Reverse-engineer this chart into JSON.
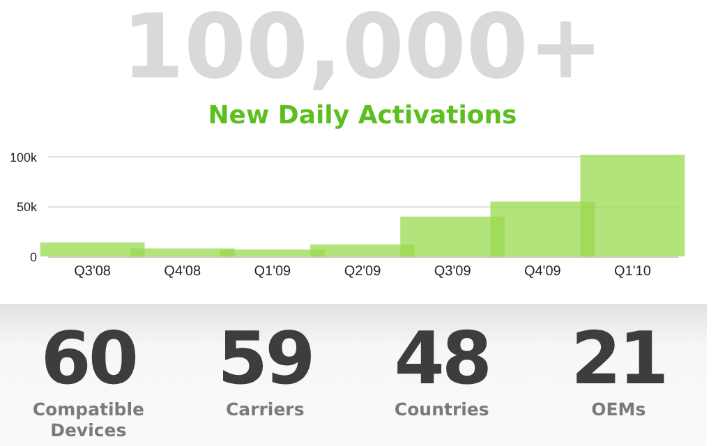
{
  "chart_data": [
    {
      "type": "bar",
      "title": "100,000+",
      "subtitle": "New Daily Activations",
      "categories": [
        "Q3'08",
        "Q4'08",
        "Q1'09",
        "Q2'09",
        "Q3'09",
        "Q4'09",
        "Q1'10"
      ],
      "values": [
        14000,
        8000,
        7000,
        12000,
        40000,
        55000,
        102000
      ],
      "color": "#99d94f",
      "ylim": [
        0,
        102000
      ],
      "yticks": [
        {
          "value": 0,
          "label": "0"
        },
        {
          "value": 50000,
          "label": "50k"
        },
        {
          "value": 100000,
          "label": "100k"
        }
      ],
      "grid": "y"
    },
    {
      "type": "other",
      "annotations": [
        "60",
        "Compatible Devices",
        "59",
        "Carriers",
        "48",
        "Countries",
        "21",
        "OEMs"
      ]
    }
  ]
}
